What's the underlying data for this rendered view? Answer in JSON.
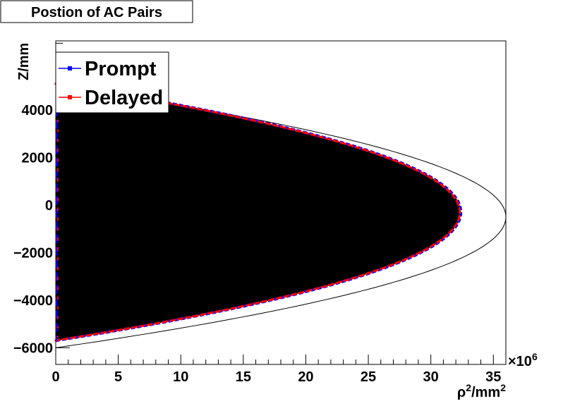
{
  "chart_data": {
    "type": "scatter",
    "title": "Postion of AC Pairs",
    "xlabel_base": "ρ",
    "xlabel_sup": "2",
    "xlabel_tail": "/mm",
    "xlabel_sup2": "2",
    "ylabel": "Z/mm",
    "x_multiplier": "×10",
    "x_multiplier_exp": "6",
    "xlim": [
      0,
      36000000
    ],
    "ylim": [
      -6700,
      6900
    ],
    "x_ticks": [
      0,
      5000000,
      10000000,
      15000000,
      20000000,
      25000000,
      30000000,
      35000000
    ],
    "x_tick_labels": [
      "0",
      "5",
      "10",
      "15",
      "20",
      "25",
      "30",
      "35"
    ],
    "y_ticks": [
      -6000,
      -4000,
      -2000,
      0,
      2000,
      4000
    ],
    "y_tick_labels": [
      "−6000",
      "−4000",
      "−2000",
      "0",
      "2000",
      "4000"
    ],
    "legend_position": "top-left",
    "series": [
      {
        "name": "Prompt",
        "color": "#0000ff",
        "marker": "square"
      },
      {
        "name": "Delayed",
        "color": "#ff0000",
        "marker": "square"
      }
    ],
    "inner_boundary": {
      "z0": -300,
      "a": 5400,
      "rho2_max": 32400000
    },
    "outer_boundary": {
      "z0": -500,
      "a": 5500,
      "rho2_max": 36000000
    },
    "fill_color": "#000000",
    "axis_line": {
      "x_value": 0,
      "z_min": -5700,
      "z_max": 5700
    }
  }
}
